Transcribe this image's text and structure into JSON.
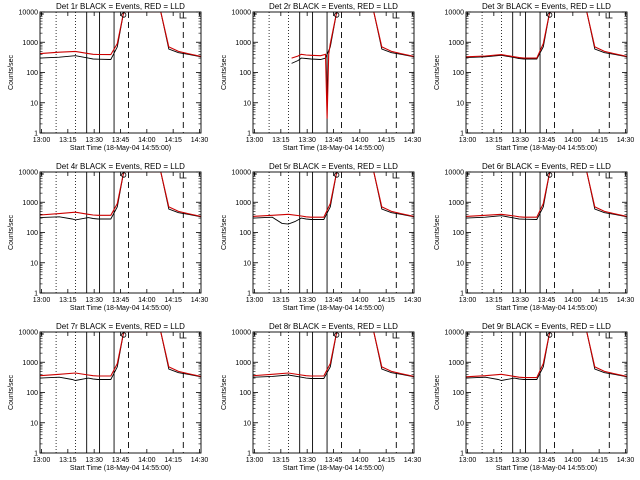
{
  "chart_data": [
    {
      "type": "line",
      "title": "Det 1r BLACK = Events, RED = LLD",
      "detector": "1r",
      "xlabel": "Start Time (18-May-04 14:55:00)",
      "ylabel": "Counts/sec",
      "x_ticks": [
        "13:00",
        "13:15",
        "13:30",
        "13:45",
        "14:00",
        "14:15",
        "14:30"
      ],
      "y_ticks": [
        "1",
        "10",
        "100",
        "1000",
        "10000"
      ],
      "yscale": "log",
      "ylim": [
        1,
        10000
      ],
      "series": [
        {
          "name": "Events",
          "color": "#000000",
          "x": [
            0,
            12,
            22,
            30,
            33,
            36,
            44,
            48,
            52,
            56,
            62,
            75,
            80,
            86,
            92,
            100
          ],
          "y": [
            300,
            320,
            360,
            300,
            280,
            275,
            270,
            700,
            10000,
            10000,
            10000,
            10000,
            600,
            450,
            400,
            330
          ]
        },
        {
          "name": "LLD",
          "color": "#cc0000",
          "x": [
            0,
            12,
            22,
            30,
            33,
            36,
            44,
            48,
            52,
            56,
            62,
            75,
            80,
            86,
            92,
            100
          ],
          "y": [
            420,
            470,
            500,
            420,
            400,
            395,
            390,
            900,
            10000,
            10000,
            10000,
            10000,
            700,
            500,
            420,
            340
          ]
        }
      ]
    },
    {
      "type": "line",
      "title": "Det 2r BLACK = Events, RED = LLD",
      "detector": "2r",
      "xlabel": "Start Time (18-May-04 14:55:00)",
      "ylabel": "Counts/sec",
      "x_ticks": [
        "13:00",
        "13:15",
        "13:30",
        "13:45",
        "14:00",
        "14:15",
        "14:30"
      ],
      "y_ticks": [
        "1",
        "10",
        "100",
        "1000",
        "10000"
      ],
      "yscale": "log",
      "ylim": [
        1,
        10000
      ],
      "series": [
        {
          "name": "Events",
          "color": "#000000",
          "x": [
            24,
            28,
            30,
            33,
            36,
            42,
            45,
            48,
            52,
            56,
            62,
            75,
            80,
            86,
            92,
            100
          ],
          "y": [
            200,
            250,
            300,
            290,
            280,
            270,
            300,
            700,
            10000,
            10000,
            10000,
            10000,
            600,
            450,
            400,
            330
          ]
        },
        {
          "name": "LLD",
          "color": "#cc0000",
          "x": [
            24,
            28,
            30,
            33,
            36,
            42,
            45,
            46,
            47,
            48,
            52,
            56,
            62,
            75,
            80,
            86,
            92,
            100
          ],
          "y": [
            300,
            350,
            400,
            380,
            370,
            360,
            400,
            3,
            400,
            900,
            10000,
            10000,
            10000,
            10000,
            700,
            500,
            420,
            340
          ]
        }
      ]
    },
    {
      "type": "line",
      "title": "Det 3r BLACK = Events, RED = LLD",
      "detector": "3r",
      "xlabel": "Start Time (18-May-04 14:55:00)",
      "ylabel": "Counts/sec",
      "x_ticks": [
        "13:00",
        "13:15",
        "13:30",
        "13:45",
        "14:00",
        "14:15",
        "14:30"
      ],
      "y_ticks": [
        "1",
        "10",
        "100",
        "1000",
        "10000"
      ],
      "yscale": "log",
      "ylim": [
        1,
        10000
      ],
      "series": [
        {
          "name": "Events",
          "color": "#000000",
          "x": [
            0,
            12,
            22,
            30,
            33,
            36,
            44,
            48,
            52,
            56,
            62,
            75,
            80,
            86,
            92,
            100
          ],
          "y": [
            310,
            330,
            370,
            310,
            290,
            280,
            280,
            700,
            10000,
            10000,
            10000,
            10000,
            600,
            450,
            400,
            330
          ]
        },
        {
          "name": "LLD",
          "color": "#cc0000",
          "x": [
            0,
            12,
            22,
            30,
            33,
            36,
            44,
            48,
            52,
            56,
            62,
            75,
            80,
            86,
            92,
            100
          ],
          "y": [
            330,
            350,
            390,
            330,
            310,
            300,
            300,
            900,
            10000,
            10000,
            10000,
            10000,
            700,
            500,
            420,
            340
          ]
        }
      ]
    },
    {
      "type": "line",
      "title": "Det 4r BLACK = Events, RED = LLD",
      "detector": "4r",
      "xlabel": "Start Time (18-May-04 14:55:00)",
      "ylabel": "Counts/sec",
      "x_ticks": [
        "13:00",
        "13:15",
        "13:30",
        "13:45",
        "14:00",
        "14:15",
        "14:30"
      ],
      "y_ticks": [
        "1",
        "10",
        "100",
        "1000",
        "10000"
      ],
      "yscale": "log",
      "ylim": [
        1,
        10000
      ],
      "series": [
        {
          "name": "Events",
          "color": "#000000",
          "x": [
            0,
            12,
            20,
            22,
            30,
            33,
            36,
            44,
            48,
            52,
            56,
            62,
            75,
            80,
            86,
            92,
            100
          ],
          "y": [
            310,
            330,
            280,
            260,
            310,
            290,
            280,
            280,
            700,
            10000,
            10000,
            10000,
            10000,
            600,
            450,
            400,
            330
          ]
        },
        {
          "name": "LLD",
          "color": "#cc0000",
          "x": [
            0,
            12,
            22,
            30,
            33,
            36,
            44,
            48,
            52,
            56,
            62,
            75,
            80,
            86,
            92,
            100
          ],
          "y": [
            380,
            420,
            470,
            400,
            380,
            370,
            370,
            900,
            10000,
            10000,
            10000,
            10000,
            700,
            500,
            420,
            340
          ]
        }
      ]
    },
    {
      "type": "line",
      "title": "Det 5r BLACK = Events, RED = LLD",
      "detector": "5r",
      "xlabel": "Start Time (18-May-04 14:55:00)",
      "ylabel": "Counts/sec",
      "x_ticks": [
        "13:00",
        "13:15",
        "13:30",
        "13:45",
        "14:00",
        "14:15",
        "14:30"
      ],
      "y_ticks": [
        "1",
        "10",
        "100",
        "1000",
        "10000"
      ],
      "yscale": "log",
      "ylim": [
        1,
        10000
      ],
      "series": [
        {
          "name": "Events",
          "color": "#000000",
          "x": [
            0,
            12,
            18,
            22,
            26,
            30,
            33,
            36,
            44,
            48,
            52,
            56,
            62,
            75,
            80,
            86,
            92,
            100
          ],
          "y": [
            300,
            320,
            200,
            190,
            230,
            300,
            280,
            270,
            270,
            700,
            10000,
            10000,
            10000,
            10000,
            600,
            450,
            400,
            330
          ]
        },
        {
          "name": "LLD",
          "color": "#cc0000",
          "x": [
            0,
            12,
            22,
            30,
            33,
            36,
            44,
            48,
            52,
            56,
            62,
            75,
            80,
            86,
            92,
            100
          ],
          "y": [
            340,
            370,
            400,
            350,
            330,
            320,
            320,
            900,
            10000,
            10000,
            10000,
            10000,
            700,
            500,
            420,
            340
          ]
        }
      ]
    },
    {
      "type": "line",
      "title": "Det 6r BLACK = Events, RED = LLD",
      "detector": "6r",
      "xlabel": "Start Time (18-May-04 14:55:00)",
      "ylabel": "Counts/sec",
      "x_ticks": [
        "13:00",
        "13:15",
        "13:30",
        "13:45",
        "14:00",
        "14:15",
        "14:30"
      ],
      "y_ticks": [
        "1",
        "10",
        "100",
        "1000",
        "10000"
      ],
      "yscale": "log",
      "ylim": [
        1,
        10000
      ],
      "series": [
        {
          "name": "Events",
          "color": "#000000",
          "x": [
            0,
            12,
            22,
            30,
            33,
            36,
            44,
            48,
            52,
            56,
            62,
            75,
            80,
            86,
            92,
            100
          ],
          "y": [
            300,
            320,
            360,
            300,
            280,
            275,
            270,
            700,
            10000,
            10000,
            10000,
            10000,
            600,
            450,
            400,
            330
          ]
        },
        {
          "name": "LLD",
          "color": "#cc0000",
          "x": [
            0,
            12,
            22,
            30,
            33,
            36,
            44,
            48,
            52,
            56,
            62,
            75,
            80,
            86,
            92,
            100
          ],
          "y": [
            340,
            370,
            400,
            350,
            330,
            320,
            320,
            900,
            10000,
            10000,
            10000,
            10000,
            700,
            500,
            420,
            340
          ]
        }
      ]
    },
    {
      "type": "line",
      "title": "Det 7r BLACK = Events, RED = LLD",
      "detector": "7r",
      "xlabel": "Start Time (18-May-04 14:55:00)",
      "ylabel": "Counts/sec",
      "x_ticks": [
        "13:00",
        "13:15",
        "13:30",
        "13:45",
        "14:00",
        "14:15",
        "14:30"
      ],
      "y_ticks": [
        "1",
        "10",
        "100",
        "1000",
        "10000"
      ],
      "yscale": "log",
      "ylim": [
        1,
        10000
      ],
      "series": [
        {
          "name": "Events",
          "color": "#000000",
          "x": [
            0,
            12,
            20,
            22,
            30,
            33,
            36,
            44,
            48,
            52,
            56,
            62,
            75,
            80,
            86,
            92,
            100
          ],
          "y": [
            300,
            320,
            270,
            250,
            300,
            280,
            270,
            270,
            700,
            10000,
            10000,
            10000,
            10000,
            600,
            450,
            400,
            330
          ]
        },
        {
          "name": "LLD",
          "color": "#cc0000",
          "x": [
            0,
            12,
            22,
            30,
            33,
            36,
            44,
            48,
            52,
            56,
            62,
            75,
            80,
            86,
            92,
            100
          ],
          "y": [
            360,
            400,
            440,
            380,
            360,
            350,
            350,
            900,
            10000,
            10000,
            10000,
            10000,
            700,
            500,
            420,
            340
          ]
        }
      ]
    },
    {
      "type": "line",
      "title": "Det 8r BLACK = Events, RED = LLD",
      "detector": "8r",
      "xlabel": "Start Time (18-May-04 14:55:00)",
      "ylabel": "Counts/sec",
      "x_ticks": [
        "13:00",
        "13:15",
        "13:30",
        "13:45",
        "14:00",
        "14:15",
        "14:30"
      ],
      "y_ticks": [
        "1",
        "10",
        "100",
        "1000",
        "10000"
      ],
      "yscale": "log",
      "ylim": [
        1,
        10000
      ],
      "series": [
        {
          "name": "Events",
          "color": "#000000",
          "x": [
            0,
            12,
            22,
            30,
            33,
            36,
            44,
            48,
            52,
            56,
            62,
            75,
            80,
            86,
            92,
            100
          ],
          "y": [
            320,
            340,
            380,
            320,
            300,
            290,
            290,
            700,
            10000,
            10000,
            10000,
            10000,
            600,
            450,
            400,
            330
          ]
        },
        {
          "name": "LLD",
          "color": "#cc0000",
          "x": [
            0,
            12,
            22,
            30,
            33,
            36,
            44,
            48,
            52,
            56,
            62,
            75,
            80,
            86,
            92,
            100
          ],
          "y": [
            360,
            400,
            440,
            380,
            360,
            350,
            350,
            900,
            10000,
            10000,
            10000,
            10000,
            700,
            500,
            420,
            340
          ]
        }
      ]
    },
    {
      "type": "line",
      "title": "Det 9r BLACK = Events, RED = LLD",
      "detector": "9r",
      "xlabel": "Start Time (18-May-04 14:55:00)",
      "ylabel": "Counts/sec",
      "x_ticks": [
        "13:00",
        "13:15",
        "13:30",
        "13:45",
        "14:00",
        "14:15",
        "14:30"
      ],
      "y_ticks": [
        "1",
        "10",
        "100",
        "1000",
        "10000"
      ],
      "yscale": "log",
      "ylim": [
        1,
        10000
      ],
      "series": [
        {
          "name": "Events",
          "color": "#000000",
          "x": [
            0,
            12,
            20,
            22,
            30,
            33,
            36,
            44,
            48,
            52,
            56,
            62,
            75,
            80,
            86,
            92,
            100
          ],
          "y": [
            300,
            320,
            270,
            250,
            300,
            280,
            270,
            270,
            700,
            10000,
            10000,
            10000,
            10000,
            600,
            450,
            400,
            330
          ]
        },
        {
          "name": "LLD",
          "color": "#cc0000",
          "x": [
            0,
            12,
            22,
            30,
            33,
            36,
            44,
            48,
            52,
            56,
            62,
            75,
            80,
            86,
            92,
            100
          ],
          "y": [
            330,
            360,
            400,
            340,
            320,
            310,
            310,
            900,
            10000,
            10000,
            10000,
            10000,
            700,
            500,
            420,
            340
          ]
        }
      ]
    }
  ],
  "markers": {
    "dotted_x": [
      10,
      22
    ],
    "solid_x": [
      29,
      37,
      46
    ],
    "dashed_x": [
      55,
      89
    ]
  }
}
